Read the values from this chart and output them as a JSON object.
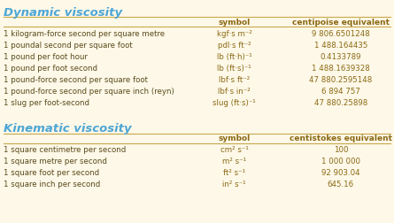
{
  "bg_color": "#fdf8e8",
  "title1": "Dynamic viscosity",
  "title2": "Kinematic viscosity",
  "title_color": "#4da6d4",
  "header_color": "#8b6914",
  "line_color": "#c8a84b",
  "text_color": "#5a4a1a",
  "symbol_color": "#8b6914",
  "value_color": "#8b6914",
  "dynamic_headers": [
    "symbol",
    "centipoise equivalent"
  ],
  "dynamic_rows": [
    [
      "1 kilogram-force second per square metre",
      "kgf·s m⁻²",
      "9 806.6501248"
    ],
    [
      "1 poundal second per square foot",
      "pdl·s ft⁻²",
      "1 488.164435"
    ],
    [
      "1 pound per foot hour",
      "lb (ft·h)⁻¹",
      "0.4133789"
    ],
    [
      "1 pound per foot second",
      "lb (ft·s)⁻¹",
      "1 488.1639328"
    ],
    [
      "1 pound-force second per square foot",
      "lbf·s ft⁻²",
      "47 880.2595148"
    ],
    [
      "1 pound-force second per square inch (reyn)",
      "lbf·s in⁻²",
      "6 894 757"
    ],
    [
      "1 slug per foot-second",
      "slug (ft·s)⁻¹",
      "47 880.25898"
    ]
  ],
  "kinematic_headers": [
    "symbol",
    "centistokes equivalent"
  ],
  "kinematic_rows": [
    [
      "1 square centimetre per second",
      "cm² s⁻¹",
      "100"
    ],
    [
      "1 square metre per second",
      "m² s⁻¹",
      "1 000 000"
    ],
    [
      "1 square foot per second",
      "ft² s⁻¹",
      "92 903.04"
    ],
    [
      "1 square inch per second",
      "in² s⁻¹",
      "645.16"
    ]
  ]
}
